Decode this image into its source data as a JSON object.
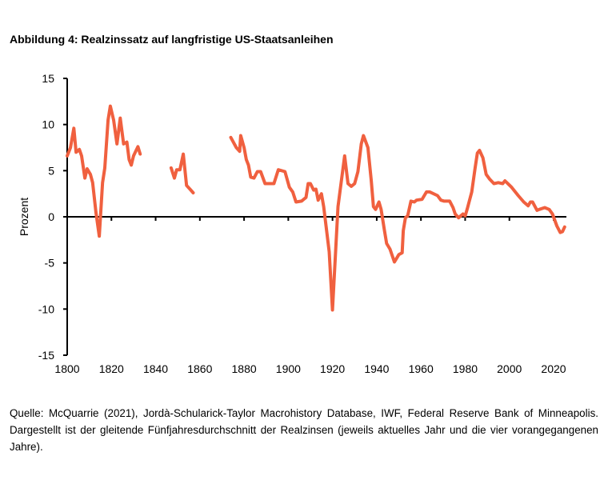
{
  "title": "Abbildung 4: Realzinssatz auf langfristige US-Staatsanleihen",
  "source": "Quelle: McQuarrie (2021), Jordà-Schularick-Taylor Macrohistory Database, IWF, Federal Reserve Bank of Minneapolis. Dargestellt ist der gleitende Fünfjahresdurchschnitt der Realzinsen (jeweils aktuelles Jahr und die vier vorangegangenen Jahre).",
  "chart_data": {
    "type": "line",
    "title": "Abbildung 4: Realzinssatz auf langfristige US-Staatsanleihen",
    "xlabel": "",
    "ylabel": "Prozent",
    "xlim": [
      1800,
      2026
    ],
    "ylim": [
      -15,
      15
    ],
    "xticks": [
      1800,
      1820,
      1840,
      1860,
      1880,
      1900,
      1920,
      1940,
      1960,
      1980,
      2000,
      2020
    ],
    "yticks": [
      15,
      10,
      5,
      0,
      -5,
      -10,
      -15
    ],
    "grid": false,
    "color": "#F0603F",
    "segments": [
      [
        [
          1800,
          6.6
        ],
        [
          1801.5,
          7.5
        ],
        [
          1803,
          9.6
        ],
        [
          1804,
          7.0
        ],
        [
          1805.5,
          7.3
        ],
        [
          1806.5,
          6.6
        ],
        [
          1808,
          4.2
        ],
        [
          1809,
          5.2
        ],
        [
          1810.5,
          4.6
        ],
        [
          1811.5,
          3.7
        ],
        [
          1813,
          0.5
        ],
        [
          1814.5,
          -2.1
        ],
        [
          1816,
          3.7
        ],
        [
          1817,
          5.3
        ],
        [
          1818.5,
          10.5
        ],
        [
          1819.5,
          12.0
        ],
        [
          1821,
          10.5
        ],
        [
          1822.5,
          7.9
        ],
        [
          1824,
          10.7
        ],
        [
          1825.5,
          7.9
        ],
        [
          1827,
          8.1
        ],
        [
          1828,
          6.2
        ],
        [
          1829,
          5.6
        ],
        [
          1830,
          6.6
        ],
        [
          1832,
          7.6
        ],
        [
          1833,
          6.8
        ]
      ],
      [
        [
          1847,
          5.3
        ],
        [
          1848.5,
          4.2
        ],
        [
          1849.5,
          5.1
        ],
        [
          1851,
          5.1
        ],
        [
          1852.5,
          6.8
        ],
        [
          1854,
          3.4
        ],
        [
          1855.5,
          3.0
        ],
        [
          1857,
          2.6
        ]
      ],
      [
        [
          1874,
          8.6
        ],
        [
          1876.5,
          7.5
        ],
        [
          1878,
          7.1
        ],
        [
          1878.5,
          8.8
        ],
        [
          1880,
          7.5
        ],
        [
          1881,
          6.2
        ],
        [
          1882,
          5.6
        ],
        [
          1883,
          4.3
        ],
        [
          1884.5,
          4.2
        ],
        [
          1886,
          4.9
        ],
        [
          1887.5,
          4.9
        ],
        [
          1889.5,
          3.6
        ],
        [
          1893.5,
          3.6
        ],
        [
          1895.5,
          5.1
        ],
        [
          1898.5,
          4.9
        ],
        [
          1900.5,
          3.2
        ],
        [
          1902,
          2.7
        ],
        [
          1903.5,
          1.6
        ],
        [
          1906,
          1.7
        ],
        [
          1908,
          2.1
        ],
        [
          1909,
          3.6
        ],
        [
          1910,
          3.6
        ],
        [
          1911.5,
          2.9
        ],
        [
          1912.5,
          3.0
        ],
        [
          1913.5,
          1.8
        ],
        [
          1915,
          2.5
        ],
        [
          1916,
          1.1
        ],
        [
          1918.5,
          -3.8
        ],
        [
          1920,
          -10.1
        ],
        [
          1922.5,
          1.1
        ],
        [
          1925.5,
          6.6
        ],
        [
          1927,
          3.6
        ],
        [
          1928.5,
          3.3
        ],
        [
          1930,
          3.6
        ],
        [
          1931.5,
          4.9
        ],
        [
          1933,
          7.9
        ],
        [
          1934,
          8.8
        ],
        [
          1936,
          7.5
        ],
        [
          1937.5,
          4.0
        ],
        [
          1938.5,
          1.1
        ],
        [
          1939.5,
          0.8
        ],
        [
          1941,
          1.6
        ],
        [
          1942,
          0.8
        ],
        [
          1943.5,
          -1.5
        ],
        [
          1944.5,
          -2.9
        ],
        [
          1946,
          -3.5
        ],
        [
          1948,
          -4.9
        ],
        [
          1950,
          -4.1
        ],
        [
          1951.5,
          -3.9
        ],
        [
          1952,
          -1.5
        ],
        [
          1953,
          -0.1
        ],
        [
          1954,
          0.1
        ],
        [
          1955.5,
          1.7
        ],
        [
          1957,
          1.6
        ],
        [
          1958,
          1.8
        ],
        [
          1960.5,
          1.9
        ],
        [
          1962.5,
          2.7
        ],
        [
          1964,
          2.7
        ],
        [
          1967.5,
          2.3
        ],
        [
          1969,
          1.8
        ],
        [
          1970.5,
          1.7
        ],
        [
          1973,
          1.7
        ],
        [
          1974.5,
          1.0
        ],
        [
          1975.5,
          0.3
        ],
        [
          1977,
          -0.1
        ],
        [
          1979,
          0.3
        ],
        [
          1980,
          0.1
        ],
        [
          1981,
          0.9
        ],
        [
          1983,
          2.7
        ],
        [
          1984.5,
          5.3
        ],
        [
          1985.5,
          6.9
        ],
        [
          1986.5,
          7.2
        ],
        [
          1988,
          6.4
        ],
        [
          1989.5,
          4.6
        ],
        [
          1991,
          4.1
        ],
        [
          1993,
          3.6
        ],
        [
          1995,
          3.7
        ],
        [
          1997,
          3.6
        ],
        [
          1998,
          3.9
        ],
        [
          2001,
          3.2
        ],
        [
          2004,
          2.3
        ],
        [
          2006.5,
          1.6
        ],
        [
          2008.5,
          1.2
        ],
        [
          2009.5,
          1.6
        ],
        [
          2010.5,
          1.6
        ],
        [
          2012.5,
          0.7
        ],
        [
          2013.5,
          0.8
        ],
        [
          2016,
          1.0
        ],
        [
          2018,
          0.8
        ],
        [
          2019.5,
          0.3
        ],
        [
          2021.5,
          -1.0
        ],
        [
          2023,
          -1.7
        ],
        [
          2024,
          -1.6
        ],
        [
          2025,
          -1.1
        ]
      ]
    ]
  }
}
